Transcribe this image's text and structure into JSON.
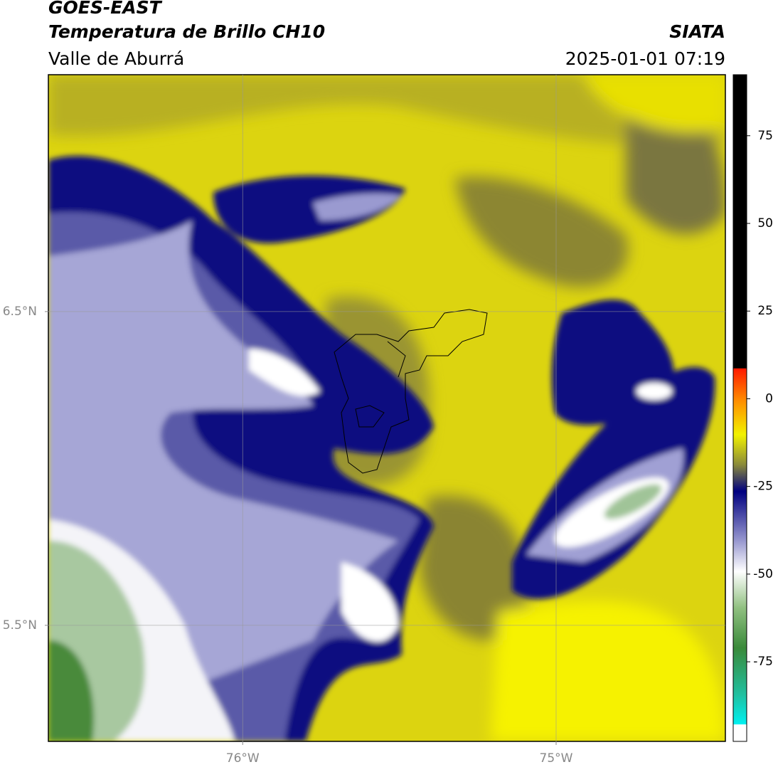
{
  "header": {
    "title": "GOES-EAST",
    "subtitle": "Temperatura de Brillo CH10",
    "region": "Valle de Aburrá",
    "source": "SIATA",
    "datetime": "2025-01-01 07:19"
  },
  "map": {
    "xlim": [
      -76.62,
      -74.46
    ],
    "ylim": [
      5.13,
      7.255
    ],
    "xticks": [
      {
        "value": -76,
        "label": "76°W"
      },
      {
        "value": -75,
        "label": "75°W"
      }
    ],
    "yticks": [
      {
        "value": 6.5,
        "label": "6.5°N"
      },
      {
        "value": 5.5,
        "label": "5.5°N"
      }
    ],
    "grid": true
  },
  "colorbar": {
    "lim": [
      -97.7,
      92.4
    ],
    "ticks": [
      75,
      50,
      25,
      0,
      -25,
      -50,
      -75
    ]
  }
}
